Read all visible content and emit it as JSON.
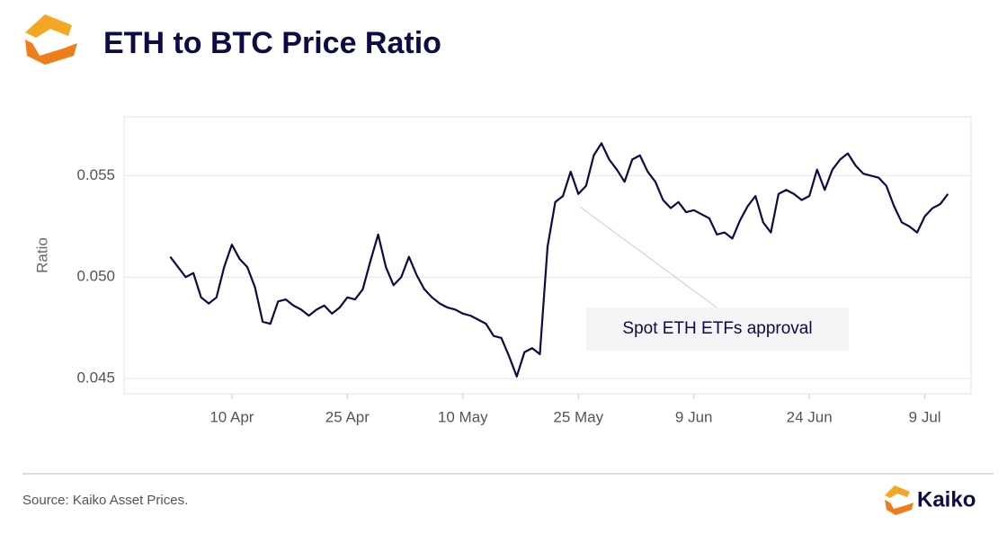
{
  "chart_data": {
    "type": "line",
    "title": "ETH to BTC Price Ratio",
    "ylabel": "Ratio",
    "annotation": "Spot ETH ETFs approval",
    "x": [
      "04-02",
      "04-03",
      "04-04",
      "04-05",
      "04-06",
      "04-07",
      "04-08",
      "04-09",
      "04-10",
      "04-11",
      "04-12",
      "04-13",
      "04-14",
      "04-15",
      "04-16",
      "04-17",
      "04-18",
      "04-19",
      "04-20",
      "04-21",
      "04-22",
      "04-23",
      "04-24",
      "04-25",
      "04-26",
      "04-27",
      "04-28",
      "04-29",
      "04-30",
      "05-01",
      "05-02",
      "05-03",
      "05-04",
      "05-05",
      "05-06",
      "05-07",
      "05-08",
      "05-09",
      "05-10",
      "05-11",
      "05-12",
      "05-13",
      "05-14",
      "05-15",
      "05-16",
      "05-17",
      "05-18",
      "05-19",
      "05-20",
      "05-21",
      "05-22",
      "05-23",
      "05-24",
      "05-25",
      "05-26",
      "05-27",
      "05-28",
      "05-29",
      "05-30",
      "05-31",
      "06-01",
      "06-02",
      "06-03",
      "06-04",
      "06-05",
      "06-06",
      "06-07",
      "06-08",
      "06-09",
      "06-10",
      "06-11",
      "06-12",
      "06-13",
      "06-14",
      "06-15",
      "06-16",
      "06-17",
      "06-18",
      "06-19",
      "06-20",
      "06-21",
      "06-22",
      "06-23",
      "06-24",
      "06-25",
      "06-26",
      "06-27",
      "06-28",
      "06-29",
      "06-30",
      "07-01",
      "07-02",
      "07-03",
      "07-04",
      "07-05",
      "07-06",
      "07-07",
      "07-08",
      "07-09",
      "07-10",
      "07-11",
      "07-12"
    ],
    "series": [
      {
        "name": "ETH/BTC",
        "color": "#0b0b45",
        "values": [
          0.051,
          0.0505,
          0.05,
          0.0502,
          0.049,
          0.0487,
          0.049,
          0.0505,
          0.0516,
          0.0509,
          0.0505,
          0.0495,
          0.0478,
          0.0477,
          0.0488,
          0.0489,
          0.0486,
          0.0484,
          0.0481,
          0.0484,
          0.0486,
          0.0482,
          0.0485,
          0.049,
          0.0489,
          0.0494,
          0.0508,
          0.0521,
          0.0505,
          0.0496,
          0.05,
          0.051,
          0.0501,
          0.0494,
          0.049,
          0.0487,
          0.0485,
          0.0484,
          0.0482,
          0.0481,
          0.0479,
          0.0477,
          0.0471,
          0.047,
          0.0461,
          0.0451,
          0.0463,
          0.0465,
          0.0462,
          0.0515,
          0.0537,
          0.054,
          0.0552,
          0.0541,
          0.0545,
          0.056,
          0.0566,
          0.0558,
          0.0553,
          0.0547,
          0.0558,
          0.056,
          0.0552,
          0.0547,
          0.0538,
          0.0534,
          0.0537,
          0.0532,
          0.0533,
          0.0531,
          0.0529,
          0.0521,
          0.0522,
          0.0519,
          0.0528,
          0.0535,
          0.054,
          0.0527,
          0.0522,
          0.0541,
          0.0543,
          0.0541,
          0.0538,
          0.054,
          0.0553,
          0.0543,
          0.0553,
          0.0558,
          0.0561,
          0.0555,
          0.0551,
          0.055,
          0.0549,
          0.0545,
          0.0535,
          0.0527,
          0.0525,
          0.0522,
          0.053,
          0.0534,
          0.0536,
          0.0541
        ]
      }
    ],
    "xlim": [
      "03-27",
      "07-15"
    ],
    "xticks": [
      {
        "value": "04-10",
        "label": "10 Apr"
      },
      {
        "value": "04-25",
        "label": "25 Apr"
      },
      {
        "value": "05-10",
        "label": "10 May"
      },
      {
        "value": "05-25",
        "label": "25 May"
      },
      {
        "value": "06-09",
        "label": "9 Jun"
      },
      {
        "value": "06-24",
        "label": "24 Jun"
      },
      {
        "value": "07-09",
        "label": "9 Jul"
      }
    ],
    "ylim": [
      0.04425,
      0.0579
    ],
    "yticks": [
      0.045,
      {
        "value": 0.05,
        "label": "0.050"
      },
      0.055
    ],
    "grid": true
  },
  "source": "Source: Kaiko Asset Prices.",
  "brand": "Kaiko"
}
